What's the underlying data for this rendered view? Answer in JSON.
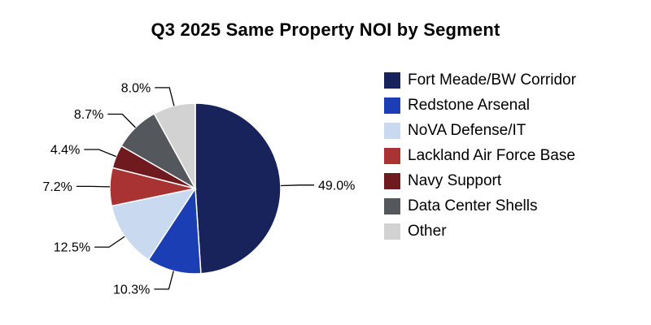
{
  "chart_data": {
    "type": "pie",
    "title": "Q3 2025 Same Property NOI by Segment",
    "labels": [
      "Fort Meade/BW Corridor",
      "Redstone Arsenal",
      "NoVA Defense/IT",
      "Lackland Air Force Base",
      "Navy Support",
      "Data Center Shells",
      "Other"
    ],
    "values": [
      49.0,
      10.3,
      12.5,
      7.2,
      4.4,
      8.7,
      8.0
    ],
    "value_labels": [
      "49.0%",
      "10.3%",
      "12.5%",
      "7.2%",
      "4.4%",
      "8.7%",
      "8.0%"
    ],
    "colors": [
      "#17235a",
      "#1c3eb4",
      "#c9d9f0",
      "#a93232",
      "#6e1a1e",
      "#54585c",
      "#d2d2d2"
    ],
    "start_angle_deg": 0,
    "direction": "clockwise",
    "legend_position": "right",
    "leader_line_color": "#000000"
  }
}
